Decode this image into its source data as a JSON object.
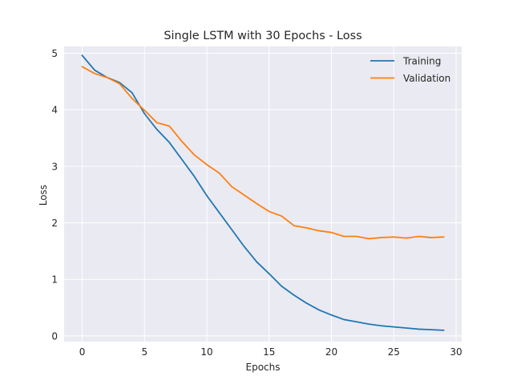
{
  "chart_data": {
    "type": "line",
    "title": "Single LSTM with 30 Epochs - Loss",
    "xlabel": "Epochs",
    "ylabel": "Loss",
    "xlim": [
      -1.45,
      30.45
    ],
    "ylim": [
      -0.1,
      5.12
    ],
    "xticks": [
      0,
      5,
      10,
      15,
      20,
      25,
      30
    ],
    "yticks": [
      0,
      1,
      2,
      3,
      4,
      5
    ],
    "grid": true,
    "legend_position": "upper right",
    "x": [
      0,
      1,
      2,
      3,
      4,
      5,
      6,
      7,
      8,
      9,
      10,
      11,
      12,
      13,
      14,
      15,
      16,
      17,
      18,
      19,
      20,
      21,
      22,
      23,
      24,
      25,
      26,
      27,
      28,
      29
    ],
    "series": [
      {
        "name": "Training",
        "color": "#1f77b4",
        "values": [
          4.96,
          4.7,
          4.57,
          4.48,
          4.3,
          3.93,
          3.65,
          3.42,
          3.12,
          2.82,
          2.48,
          2.18,
          1.88,
          1.58,
          1.31,
          1.1,
          0.88,
          0.72,
          0.58,
          0.46,
          0.37,
          0.29,
          0.25,
          0.21,
          0.18,
          0.16,
          0.14,
          0.12,
          0.11,
          0.1
        ]
      },
      {
        "name": "Validation",
        "color": "#ff7f0e",
        "values": [
          4.76,
          4.64,
          4.57,
          4.46,
          4.2,
          3.99,
          3.77,
          3.71,
          3.44,
          3.2,
          3.03,
          2.88,
          2.64,
          2.49,
          2.34,
          2.2,
          2.12,
          1.95,
          1.91,
          1.86,
          1.83,
          1.76,
          1.76,
          1.72,
          1.74,
          1.75,
          1.73,
          1.76,
          1.74,
          1.75
        ]
      }
    ]
  },
  "style": {
    "background": "#ffffff",
    "plot_background": "#eaeaf2",
    "grid_color": "#ffffff",
    "text_color": "#262626"
  }
}
